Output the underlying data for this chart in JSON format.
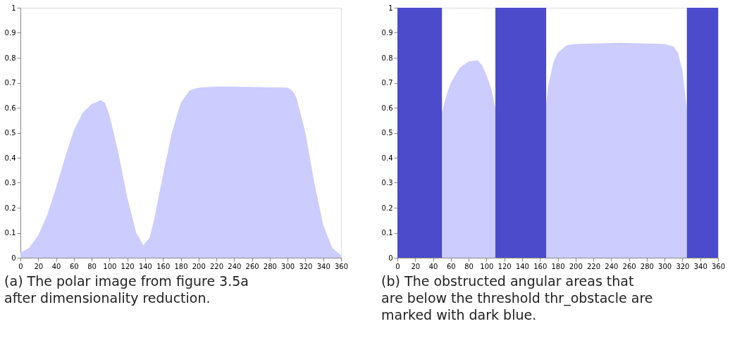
{
  "chart_data": [
    {
      "type": "area",
      "x": [
        0,
        10,
        20,
        30,
        40,
        50,
        60,
        70,
        80,
        90,
        95,
        100,
        110,
        120,
        130,
        138,
        145,
        150,
        160,
        170,
        180,
        190,
        200,
        220,
        260,
        300,
        305,
        310,
        320,
        330,
        340,
        350,
        360
      ],
      "series": [
        {
          "color": "#ccccff",
          "values": [
            0.02,
            0.04,
            0.09,
            0.17,
            0.28,
            0.4,
            0.51,
            0.58,
            0.615,
            0.63,
            0.62,
            0.57,
            0.42,
            0.24,
            0.1,
            0.05,
            0.08,
            0.15,
            0.33,
            0.5,
            0.62,
            0.67,
            0.68,
            0.685,
            0.683,
            0.68,
            0.67,
            0.64,
            0.5,
            0.3,
            0.13,
            0.04,
            0.01
          ]
        }
      ],
      "xlim": [
        0,
        360
      ],
      "xticks": [
        0,
        20,
        40,
        60,
        80,
        100,
        120,
        140,
        160,
        180,
        200,
        220,
        240,
        260,
        280,
        300,
        320,
        340,
        360
      ],
      "ylim": [
        0,
        1
      ],
      "yticks": [
        0,
        0.1,
        0.2,
        0.3,
        0.4,
        0.5,
        0.6,
        0.7,
        0.8,
        0.9,
        1
      ],
      "annotations": [
        "(a) The polar image from figure 3.5a after dimensionality reduction."
      ]
    },
    {
      "type": "area",
      "x": [
        50,
        55,
        60,
        70,
        80,
        90,
        95,
        100,
        105,
        110,
        138,
        167,
        170,
        175,
        180,
        190,
        200,
        250,
        300,
        310,
        315,
        320,
        325
      ],
      "series": [
        {
          "color": "#ccccff",
          "values": [
            0.58,
            0.65,
            0.7,
            0.76,
            0.785,
            0.79,
            0.77,
            0.73,
            0.68,
            0.6,
            null,
            0.62,
            0.7,
            0.78,
            0.82,
            0.85,
            0.855,
            0.86,
            0.855,
            0.845,
            0.82,
            0.75,
            0.59
          ]
        }
      ],
      "bands": [
        {
          "axis": "x",
          "from": 0,
          "to": 50,
          "color": "#4b4bcc"
        },
        {
          "axis": "x",
          "from": 110,
          "to": 167,
          "color": "#4b4bcc"
        },
        {
          "axis": "x",
          "from": 325,
          "to": 360,
          "color": "#4b4bcc"
        }
      ],
      "xlim": [
        0,
        360
      ],
      "xticks": [
        0,
        20,
        40,
        60,
        80,
        100,
        120,
        140,
        160,
        180,
        200,
        220,
        240,
        260,
        280,
        300,
        320,
        340,
        360
      ],
      "ylim": [
        0,
        1
      ],
      "yticks": [
        0,
        0.1,
        0.2,
        0.3,
        0.4,
        0.5,
        0.6,
        0.7,
        0.8,
        0.9,
        1
      ],
      "annotations": [
        "(b) The obstructed angular areas that are below the threshold thr_obstacle are marked with dark blue."
      ]
    }
  ]
}
